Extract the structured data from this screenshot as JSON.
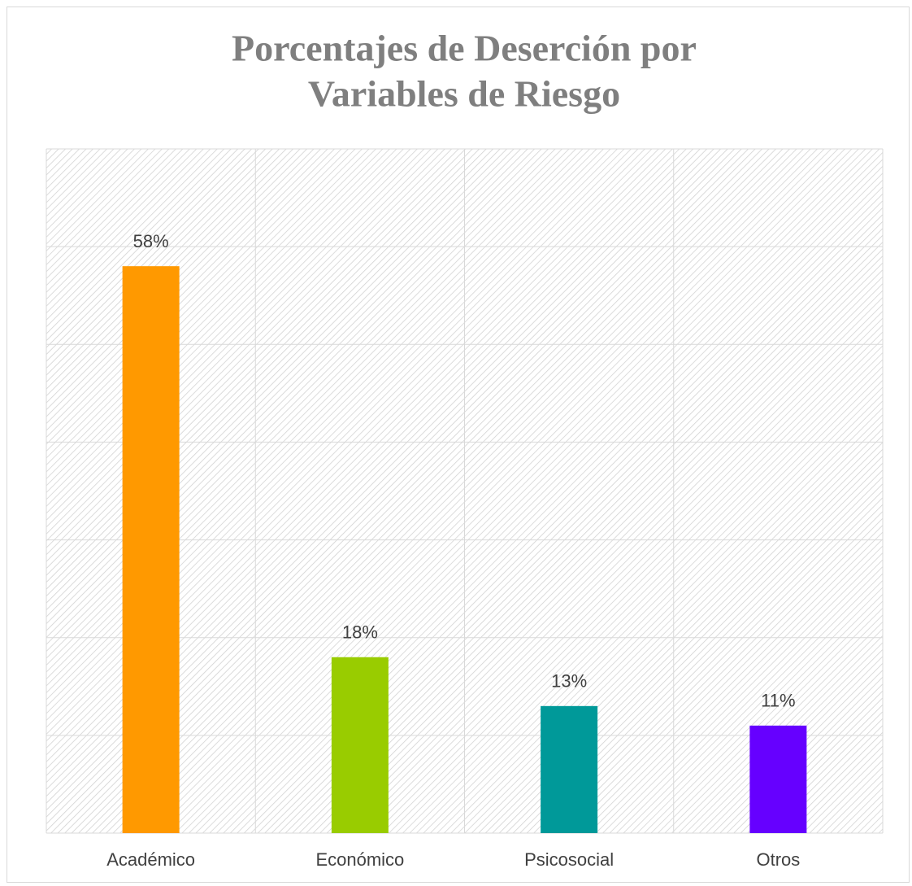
{
  "chart_data": {
    "type": "bar",
    "title": [
      "Porcentajes de Deserción por",
      "Variables de Riesgo"
    ],
    "categories": [
      "Académico",
      "Económico",
      "Psicosocial",
      "Otros"
    ],
    "values": [
      58,
      18,
      13,
      11
    ],
    "value_labels": [
      "58%",
      "18%",
      "13%",
      "11%"
    ],
    "colors": [
      "#ff9900",
      "#99cc00",
      "#009999",
      "#6600ff"
    ],
    "ylim": [
      0,
      70
    ],
    "yticks": [
      0,
      10,
      20,
      30,
      40,
      50,
      60,
      70
    ],
    "grid": true
  }
}
